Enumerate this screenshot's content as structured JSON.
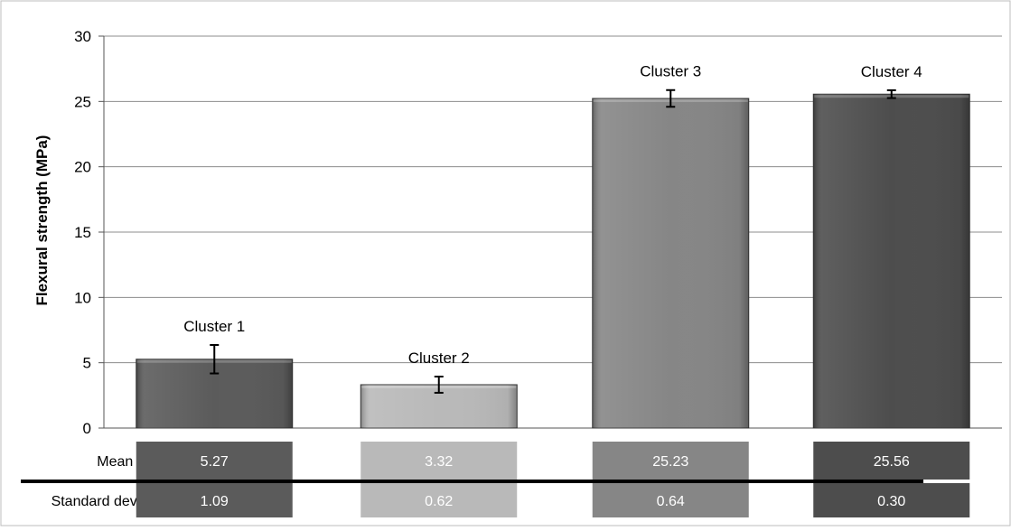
{
  "chart_data": {
    "type": "bar",
    "categories": [
      "Cluster 1",
      "Cluster 2",
      "Cluster 3",
      "Cluster 4"
    ],
    "values": [
      5.27,
      3.32,
      25.23,
      25.56
    ],
    "std_dev": [
      1.09,
      0.62,
      0.64,
      0.3
    ],
    "ylabel": "Flexural strength (MPa)",
    "xlabel": "",
    "ylim": [
      0,
      30
    ],
    "yticks": [
      "0",
      "5",
      "10",
      "15",
      "20",
      "25",
      "30"
    ],
    "grid": true,
    "legend": "none",
    "error_bars": true,
    "bar_colors": [
      "#5b5b5b",
      "#b9b9b9",
      "#868686",
      "#4d4d4d"
    ],
    "table": {
      "row_labels": [
        "Mean value",
        "Standard deviation"
      ],
      "mean_values": [
        "5.27",
        "3.32",
        "25.23",
        "25.56"
      ],
      "std_values": [
        "1.09",
        "0.62",
        "0.64",
        "0.30"
      ]
    }
  }
}
